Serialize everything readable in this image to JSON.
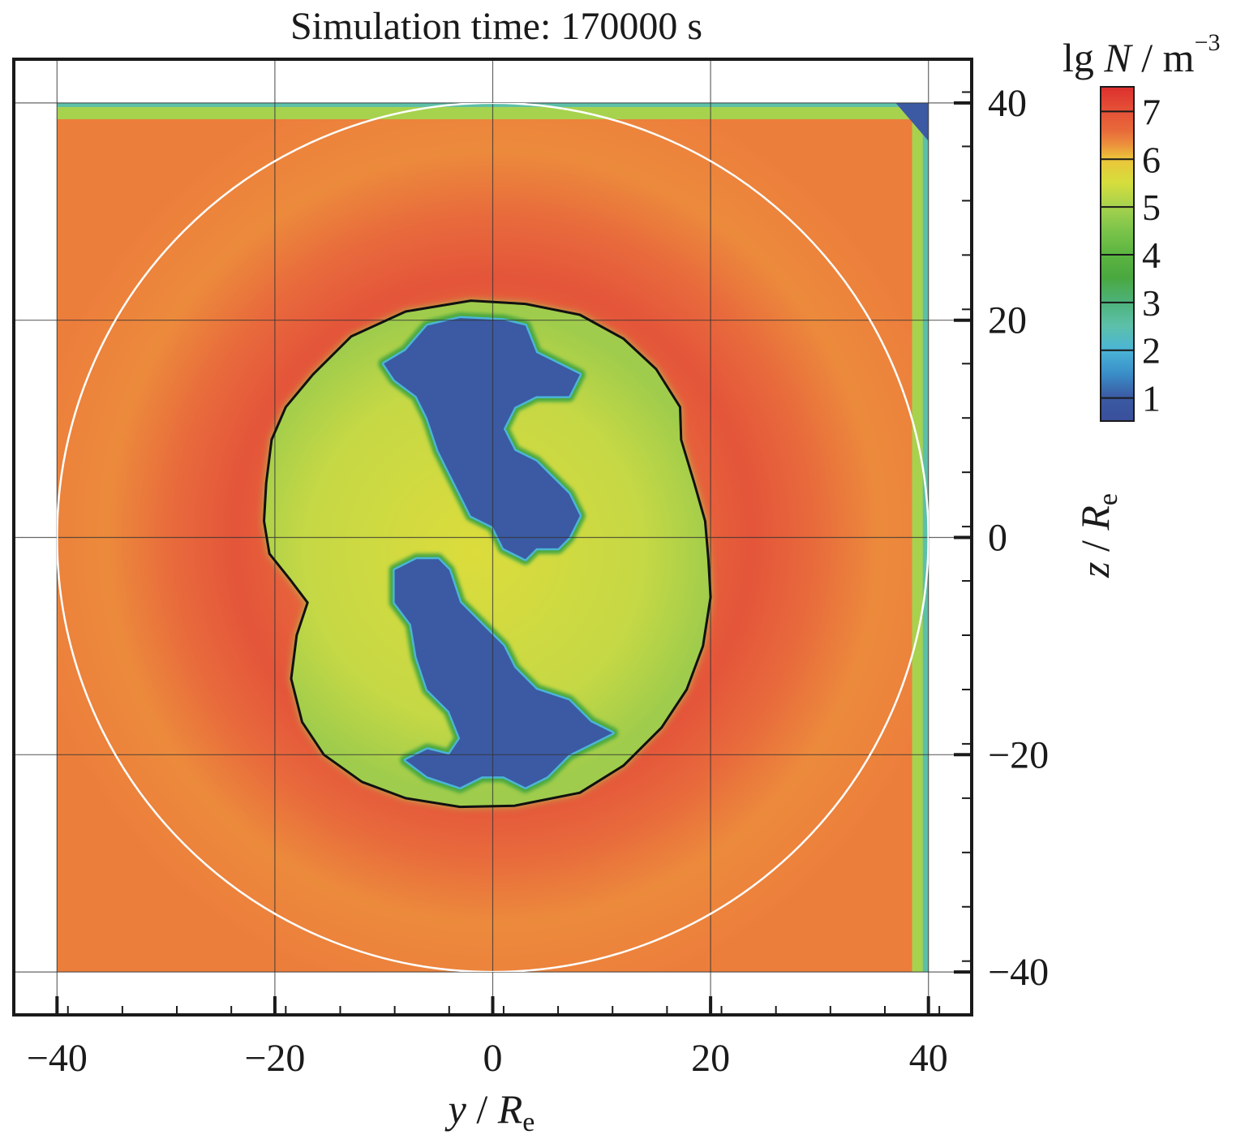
{
  "chart_data": {
    "type": "heatmap",
    "title": "Simulation time: 170000 s",
    "xlabel": {
      "var": "y",
      "sep": " / ",
      "sym": "R",
      "sub": "e"
    },
    "ylabel": {
      "var": "z",
      "sep": " / ",
      "sym": "R",
      "sub": "e"
    },
    "xlim": [
      -44,
      44
    ],
    "ylim": [
      -44,
      44
    ],
    "xticks": [
      -40,
      -20,
      0,
      20,
      40
    ],
    "xtick_labels": [
      "−40",
      "−20",
      "0",
      "20",
      "40"
    ],
    "yticks": [
      40,
      20,
      0,
      -20,
      -40
    ],
    "ytick_labels": [
      "40",
      "20",
      "0",
      "−20",
      "−40"
    ],
    "minor_tick_step": 5,
    "grid": true,
    "data_extent": {
      "y": [
        -40,
        40
      ],
      "z": [
        -40,
        40
      ]
    },
    "colorbar": {
      "label": {
        "prefix": "lg ",
        "var": "N",
        "sep": " / ",
        "unit": "m",
        "exp": "−3"
      },
      "range": [
        0.5,
        7.5
      ],
      "ticks": [
        1,
        2,
        3,
        4,
        5,
        6,
        7
      ],
      "tick_labels": [
        "1",
        "2",
        "3",
        "4",
        "5",
        "6",
        "7"
      ],
      "colors": [
        {
          "v": 0.5,
          "c": "#3a4f9c"
        },
        {
          "v": 1.0,
          "c": "#3b5aa3"
        },
        {
          "v": 1.5,
          "c": "#3a8fc9"
        },
        {
          "v": 2.0,
          "c": "#4bb5d6"
        },
        {
          "v": 2.5,
          "c": "#5cc0a8"
        },
        {
          "v": 3.0,
          "c": "#4db27a"
        },
        {
          "v": 3.5,
          "c": "#4aa83f"
        },
        {
          "v": 4.0,
          "c": "#5cb541"
        },
        {
          "v": 4.5,
          "c": "#7cc44a"
        },
        {
          "v": 5.0,
          "c": "#a7d24e"
        },
        {
          "v": 5.5,
          "c": "#d6de3c"
        },
        {
          "v": 6.0,
          "c": "#ecc33a"
        },
        {
          "v": 6.3,
          "c": "#ec8e3c"
        },
        {
          "v": 6.6,
          "c": "#e8683a"
        },
        {
          "v": 7.0,
          "c": "#e55137"
        },
        {
          "v": 7.5,
          "c": "#dc2f2e"
        }
      ]
    },
    "field": {
      "description_values": "lg N values of regions",
      "outer_plasma_lgN": 6.6,
      "ring_peak_lgN": 6.9,
      "ring_radius": 28,
      "inner_region_lgN": 5.5,
      "cavity_lgN": 0.8,
      "top_boundary_band_z": [
        38.5,
        40
      ],
      "right_boundary_band_y": [
        38.5,
        40
      ]
    },
    "overlays": {
      "white_circle": {
        "center": [
          0,
          0
        ],
        "radius": 40,
        "color": "#ffffff"
      },
      "black_contour": {
        "color": "#111111",
        "points": [
          [
            -2,
            21.8
          ],
          [
            3,
            21.5
          ],
          [
            8,
            20.5
          ],
          [
            12,
            18.3
          ],
          [
            15,
            15.5
          ],
          [
            17.2,
            12
          ],
          [
            17.3,
            9
          ],
          [
            18.5,
            5
          ],
          [
            19.5,
            1.5
          ],
          [
            19.8,
            -2
          ],
          [
            20,
            -5.5
          ],
          [
            19.3,
            -10
          ],
          [
            17.8,
            -14
          ],
          [
            15.5,
            -17.5
          ],
          [
            12,
            -21
          ],
          [
            8,
            -23.5
          ],
          [
            2,
            -24.7
          ],
          [
            -3,
            -24.8
          ],
          [
            -8,
            -24
          ],
          [
            -12,
            -22.5
          ],
          [
            -15.5,
            -20
          ],
          [
            -17.5,
            -17
          ],
          [
            -18.5,
            -13
          ],
          [
            -18,
            -9
          ],
          [
            -17,
            -6
          ],
          [
            -18.5,
            -4
          ],
          [
            -20.5,
            -1.5
          ],
          [
            -21,
            1.5
          ],
          [
            -20.8,
            5
          ],
          [
            -20.3,
            9
          ],
          [
            -19,
            12
          ],
          [
            -16.5,
            15
          ],
          [
            -13,
            18.5
          ],
          [
            -8,
            20.8
          ],
          [
            -2,
            21.8
          ]
        ]
      },
      "cavity_upper": [
        [
          -8,
          17.2
        ],
        [
          -6,
          19.5
        ],
        [
          -3,
          20.2
        ],
        [
          1,
          20
        ],
        [
          3,
          19.5
        ],
        [
          4,
          17
        ],
        [
          6,
          16
        ],
        [
          8,
          15
        ],
        [
          7,
          13
        ],
        [
          4,
          13
        ],
        [
          2,
          12
        ],
        [
          1,
          10
        ],
        [
          2,
          8
        ],
        [
          4,
          7
        ],
        [
          5,
          6
        ],
        [
          7,
          4
        ],
        [
          8,
          2
        ],
        [
          7,
          0
        ],
        [
          6,
          -1
        ],
        [
          4,
          -1
        ],
        [
          3,
          -2
        ],
        [
          1,
          -1
        ],
        [
          0,
          1
        ],
        [
          -2,
          2
        ],
        [
          -3,
          4
        ],
        [
          -4,
          6
        ],
        [
          -5,
          8
        ],
        [
          -6,
          11
        ],
        [
          -7,
          13
        ],
        [
          -9,
          14.5
        ],
        [
          -10,
          16
        ],
        [
          -8,
          17.2
        ]
      ],
      "cavity_lower": [
        [
          -9,
          -3
        ],
        [
          -7,
          -2
        ],
        [
          -5,
          -2
        ],
        [
          -4,
          -3
        ],
        [
          -3,
          -6
        ],
        [
          -1,
          -8
        ],
        [
          1,
          -10
        ],
        [
          2,
          -12
        ],
        [
          4,
          -14
        ],
        [
          7,
          -15
        ],
        [
          9,
          -17
        ],
        [
          11,
          -18
        ],
        [
          9,
          -19
        ],
        [
          7,
          -20
        ],
        [
          5,
          -22
        ],
        [
          3,
          -23
        ],
        [
          1,
          -22
        ],
        [
          -1,
          -22
        ],
        [
          -3,
          -23
        ],
        [
          -6,
          -22
        ],
        [
          -8,
          -20.5
        ],
        [
          -6,
          -19.5
        ],
        [
          -4,
          -20
        ],
        [
          -3,
          -18.5
        ],
        [
          -4,
          -16
        ],
        [
          -6,
          -14
        ],
        [
          -7,
          -11
        ],
        [
          -7.5,
          -8
        ],
        [
          -9,
          -6
        ],
        [
          -9,
          -3
        ]
      ]
    }
  }
}
